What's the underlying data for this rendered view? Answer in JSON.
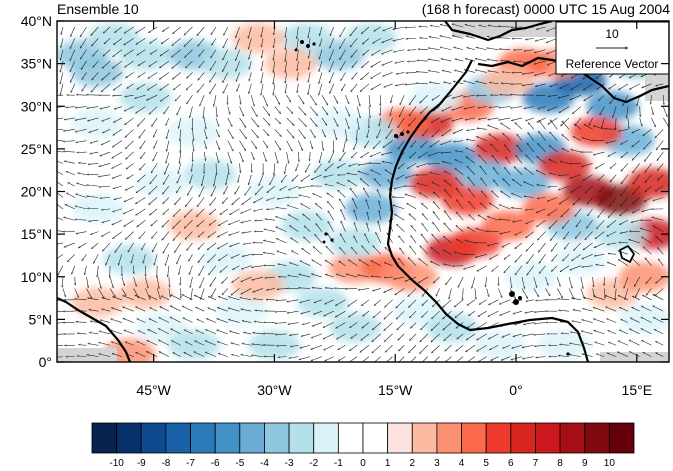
{
  "header": {
    "left": "Ensemble 10",
    "right": "(168 h forecast) 0000 UTC 15 Aug 2004"
  },
  "chart_data": {
    "type": "heatmap",
    "title": "",
    "xlabel": "",
    "ylabel": "",
    "xlim": [
      -57,
      19
    ],
    "ylim": [
      0,
      40
    ],
    "x_ticks": [
      {
        "value": -45,
        "label": "45°W"
      },
      {
        "value": -30,
        "label": "30°W"
      },
      {
        "value": -15,
        "label": "15°W"
      },
      {
        "value": 0,
        "label": "0°"
      },
      {
        "value": 15,
        "label": "15°E"
      }
    ],
    "y_ticks": [
      {
        "value": 0,
        "label": "0°"
      },
      {
        "value": 5,
        "label": "5°N"
      },
      {
        "value": 10,
        "label": "10°N"
      },
      {
        "value": 15,
        "label": "15°N"
      },
      {
        "value": 20,
        "label": "20°N"
      },
      {
        "value": 25,
        "label": "25°N"
      },
      {
        "value": 30,
        "label": "30°N"
      },
      {
        "value": 35,
        "label": "35°N"
      },
      {
        "value": 40,
        "label": "40°N"
      }
    ],
    "reference_vector": {
      "magnitude": "10",
      "label": "Reference Vector"
    },
    "colorbar": {
      "labels": [
        "-10",
        "-9",
        "-8",
        "-7",
        "-6",
        "-5",
        "-4",
        "-3",
        "-2",
        "-1",
        "0",
        "1",
        "2",
        "3",
        "4",
        "5",
        "6",
        "7",
        "8",
        "9",
        "10"
      ],
      "colors": [
        "#08234f",
        "#08306b",
        "#0d4a8f",
        "#1a62a8",
        "#2b7bba",
        "#4292c6",
        "#6aaed6",
        "#8ec7df",
        "#b3e0ea",
        "#daf3f9",
        "#ffffff",
        "#ffffff",
        "#fde0e0",
        "#fcbba1",
        "#fc9272",
        "#fb6a4a",
        "#ef3b2c",
        "#d7261e",
        "#cb181d",
        "#a50f15",
        "#800a10",
        "#67000d"
      ]
    },
    "shaded_cells": [
      {
        "lon": -54,
        "lat": 36,
        "v": -3
      },
      {
        "lon": -52,
        "lat": 34,
        "v": -3
      },
      {
        "lon": -50,
        "lat": 38,
        "v": -2
      },
      {
        "lon": -46,
        "lat": 36,
        "v": -2
      },
      {
        "lon": -40,
        "lat": 36,
        "v": -3
      },
      {
        "lon": -36,
        "lat": 35,
        "v": -2
      },
      {
        "lon": -22,
        "lat": 36,
        "v": -3
      },
      {
        "lon": -26,
        "lat": 38,
        "v": -2
      },
      {
        "lon": -18,
        "lat": 38,
        "v": -2
      },
      {
        "lon": -28,
        "lat": 35,
        "v": 2
      },
      {
        "lon": -32,
        "lat": 38,
        "v": 2
      },
      {
        "lon": -46,
        "lat": 31,
        "v": -2
      },
      {
        "lon": -52,
        "lat": 28,
        "v": -1
      },
      {
        "lon": -40,
        "lat": 27,
        "v": -1
      },
      {
        "lon": -38,
        "lat": 22,
        "v": -2
      },
      {
        "lon": -44,
        "lat": 21,
        "v": -1
      },
      {
        "lon": -52,
        "lat": 18,
        "v": -1
      },
      {
        "lon": -30,
        "lat": 20,
        "v": -1
      },
      {
        "lon": -26,
        "lat": 16,
        "v": -2
      },
      {
        "lon": -22,
        "lat": 22,
        "v": -2
      },
      {
        "lon": -48,
        "lat": 12,
        "v": -2
      },
      {
        "lon": -36,
        "lat": 12,
        "v": -1
      },
      {
        "lon": -28,
        "lat": 10,
        "v": -2
      },
      {
        "lon": -24,
        "lat": 7,
        "v": -2
      },
      {
        "lon": -34,
        "lat": 6,
        "v": -1
      },
      {
        "lon": -44,
        "lat": 4,
        "v": -1
      },
      {
        "lon": -40,
        "lat": 2,
        "v": -2
      },
      {
        "lon": -30,
        "lat": 2,
        "v": -2
      },
      {
        "lon": -20,
        "lat": 4,
        "v": -2
      },
      {
        "lon": -12,
        "lat": 6,
        "v": -1
      },
      {
        "lon": -8,
        "lat": 4,
        "v": -2
      },
      {
        "lon": -2,
        "lat": 2,
        "v": -1
      },
      {
        "lon": 6,
        "lat": 2,
        "v": -1
      },
      {
        "lon": -40,
        "lat": 16,
        "v": 2
      },
      {
        "lon": -32,
        "lat": 9,
        "v": 2
      },
      {
        "lon": -20,
        "lat": 11,
        "v": 3
      },
      {
        "lon": -16,
        "lat": 11,
        "v": 4
      },
      {
        "lon": -13,
        "lat": 10,
        "v": 3
      },
      {
        "lon": -46,
        "lat": 8,
        "v": 2
      },
      {
        "lon": -52,
        "lat": 7,
        "v": 2
      },
      {
        "lon": -48,
        "lat": 1,
        "v": 3
      },
      {
        "lon": -20,
        "lat": 14,
        "v": -2
      },
      {
        "lon": -18,
        "lat": 18,
        "v": -4
      },
      {
        "lon": -16,
        "lat": 22,
        "v": -4
      },
      {
        "lon": -13,
        "lat": 25,
        "v": -5
      },
      {
        "lon": -11,
        "lat": 28,
        "v": 6
      },
      {
        "lon": -14,
        "lat": 28,
        "v": 4
      },
      {
        "lon": -6,
        "lat": 30,
        "v": 4
      },
      {
        "lon": -3,
        "lat": 32,
        "v": -3
      },
      {
        "lon": -8,
        "lat": 24,
        "v": -5
      },
      {
        "lon": -10,
        "lat": 21,
        "v": 6
      },
      {
        "lon": -6,
        "lat": 19,
        "v": 5
      },
      {
        "lon": -2,
        "lat": 25,
        "v": 6
      },
      {
        "lon": -4,
        "lat": 22,
        "v": -4
      },
      {
        "lon": -8,
        "lat": 13,
        "v": 7
      },
      {
        "lon": -5,
        "lat": 14,
        "v": 5
      },
      {
        "lon": -1,
        "lat": 16,
        "v": 4
      },
      {
        "lon": 1,
        "lat": 21,
        "v": -4
      },
      {
        "lon": 3,
        "lat": 25,
        "v": -5
      },
      {
        "lon": 4,
        "lat": 31,
        "v": -6
      },
      {
        "lon": 8,
        "lat": 33,
        "v": -7
      },
      {
        "lon": 12,
        "lat": 30,
        "v": -5
      },
      {
        "lon": 14,
        "lat": 26,
        "v": -4
      },
      {
        "lon": 10,
        "lat": 27,
        "v": 5
      },
      {
        "lon": 6,
        "lat": 23,
        "v": 6
      },
      {
        "lon": 9,
        "lat": 20,
        "v": 8
      },
      {
        "lon": 13,
        "lat": 19,
        "v": 9
      },
      {
        "lon": 17,
        "lat": 21,
        "v": 6
      },
      {
        "lon": 17,
        "lat": 15,
        "v": 7
      },
      {
        "lon": 13,
        "lat": 15,
        "v": -2
      },
      {
        "lon": 7,
        "lat": 16,
        "v": -3
      },
      {
        "lon": 4,
        "lat": 18,
        "v": 4
      },
      {
        "lon": 5,
        "lat": 35,
        "v": 3
      },
      {
        "lon": 1,
        "lat": 35,
        "v": 4
      },
      {
        "lon": -1,
        "lat": 33,
        "v": 2
      },
      {
        "lon": 15,
        "lat": 35,
        "v": -3
      },
      {
        "lon": 2,
        "lat": 10,
        "v": -1
      },
      {
        "lon": 12,
        "lat": 8,
        "v": 2
      },
      {
        "lon": 16,
        "lat": 5,
        "v": -1
      },
      {
        "lon": 16,
        "lat": 10,
        "v": 3
      },
      {
        "lon": 8,
        "lat": 12,
        "v": -1
      },
      {
        "lon": -18,
        "lat": 27,
        "v": -2
      },
      {
        "lon": -22,
        "lat": 28,
        "v": -1
      },
      {
        "lon": -10,
        "lat": 31,
        "v": -1
      }
    ]
  }
}
